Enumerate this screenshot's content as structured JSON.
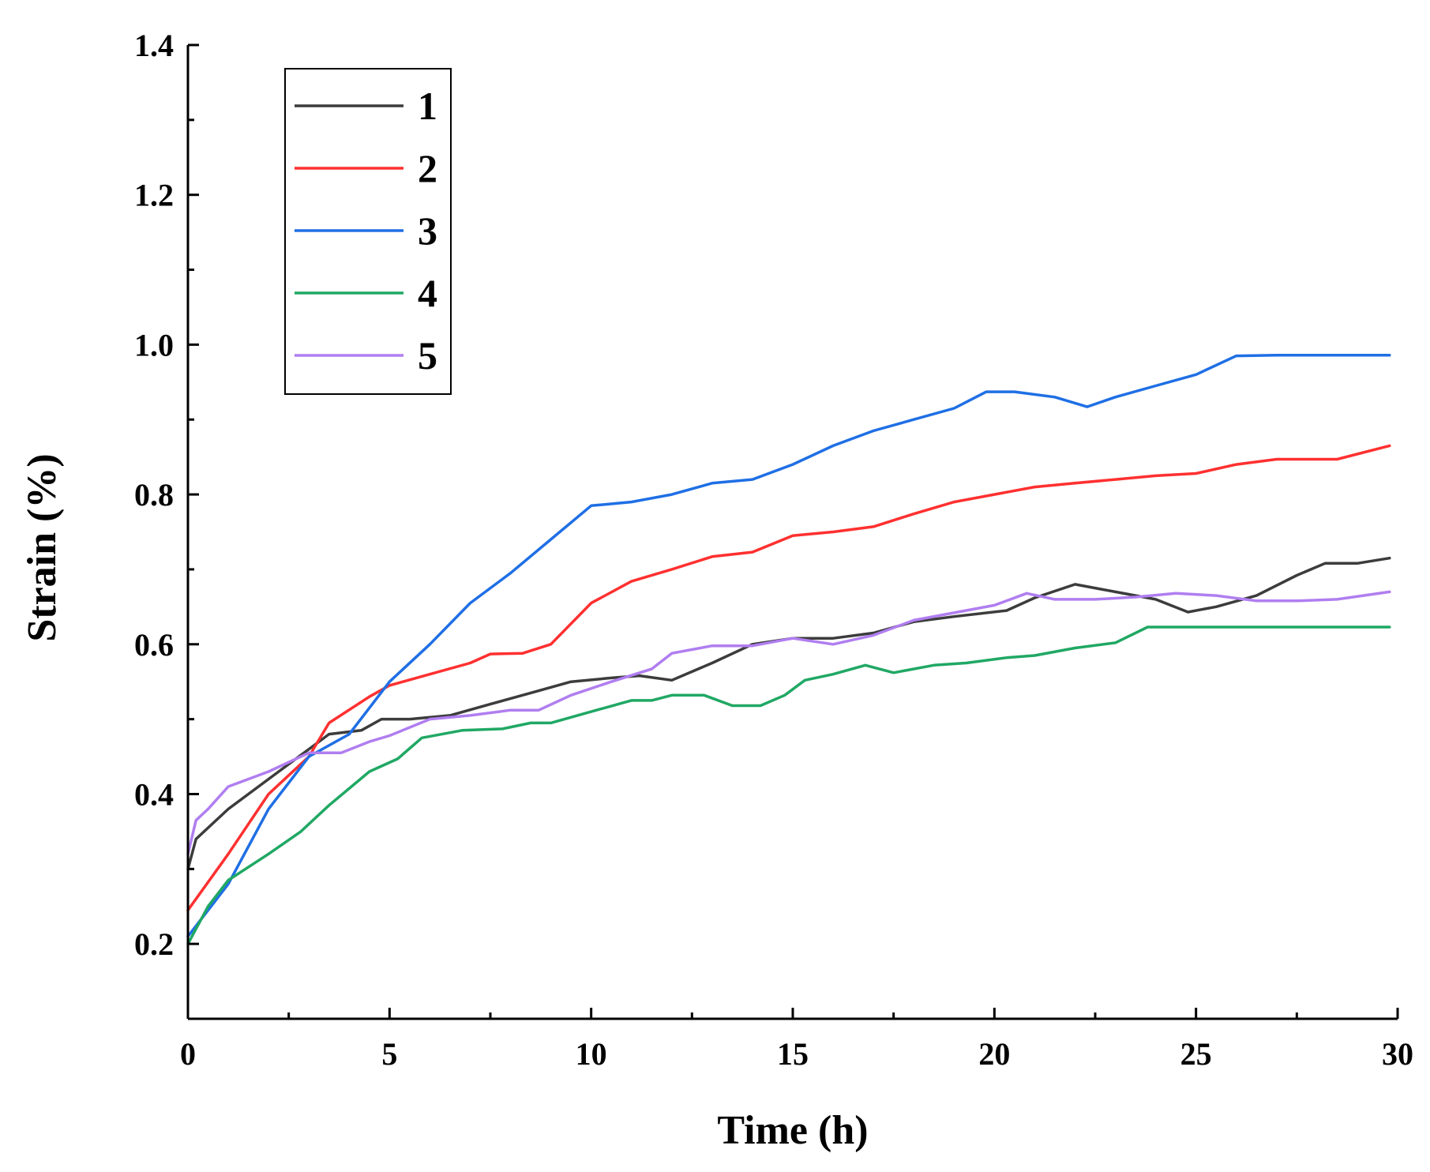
{
  "chart_data": {
    "type": "line",
    "title": "",
    "xlabel": "Time (h)",
    "ylabel": "Strain (%)",
    "xlim": [
      0,
      30
    ],
    "ylim": [
      0.1,
      1.4
    ],
    "xticks": [
      "0",
      "5",
      "10",
      "15",
      "20",
      "25",
      "30"
    ],
    "yticks": [
      "0.2",
      "0.4",
      "0.6",
      "0.8",
      "1.0",
      "1.2",
      "1.4"
    ],
    "legend_position": "top-left",
    "series": [
      {
        "name": "1",
        "color": "#3c3c3c",
        "points": [
          [
            0,
            0.3
          ],
          [
            0.2,
            0.34
          ],
          [
            1,
            0.38
          ],
          [
            2,
            0.42
          ],
          [
            3,
            0.46
          ],
          [
            3.5,
            0.48
          ],
          [
            4.3,
            0.485
          ],
          [
            4.8,
            0.5
          ],
          [
            5.5,
            0.5
          ],
          [
            6.5,
            0.505
          ],
          [
            7.5,
            0.52
          ],
          [
            8.5,
            0.535
          ],
          [
            9.5,
            0.55
          ],
          [
            10.5,
            0.555
          ],
          [
            11.2,
            0.558
          ],
          [
            12,
            0.552
          ],
          [
            13,
            0.575
          ],
          [
            14,
            0.6
          ],
          [
            15,
            0.608
          ],
          [
            16,
            0.608
          ],
          [
            17,
            0.615
          ],
          [
            18,
            0.63
          ],
          [
            19,
            0.637
          ],
          [
            20.3,
            0.645
          ],
          [
            21,
            0.662
          ],
          [
            22,
            0.68
          ],
          [
            23,
            0.67
          ],
          [
            24,
            0.66
          ],
          [
            24.8,
            0.643
          ],
          [
            25.5,
            0.65
          ],
          [
            26.5,
            0.665
          ],
          [
            27.5,
            0.692
          ],
          [
            28.2,
            0.708
          ],
          [
            29,
            0.708
          ],
          [
            29.8,
            0.715
          ]
        ]
      },
      {
        "name": "2",
        "color": "#ff3030",
        "points": [
          [
            0,
            0.245
          ],
          [
            1,
            0.32
          ],
          [
            2,
            0.4
          ],
          [
            3,
            0.45
          ],
          [
            3.5,
            0.495
          ],
          [
            4.5,
            0.53
          ],
          [
            5,
            0.545
          ],
          [
            6,
            0.56
          ],
          [
            7,
            0.575
          ],
          [
            7.5,
            0.587
          ],
          [
            8.3,
            0.588
          ],
          [
            9,
            0.6
          ],
          [
            10,
            0.655
          ],
          [
            11,
            0.684
          ],
          [
            12,
            0.7
          ],
          [
            13,
            0.717
          ],
          [
            14,
            0.723
          ],
          [
            15,
            0.745
          ],
          [
            16,
            0.75
          ],
          [
            17,
            0.757
          ],
          [
            18,
            0.774
          ],
          [
            19,
            0.79
          ],
          [
            20,
            0.8
          ],
          [
            21,
            0.81
          ],
          [
            22,
            0.815
          ],
          [
            23,
            0.82
          ],
          [
            24,
            0.825
          ],
          [
            25,
            0.828
          ],
          [
            26,
            0.84
          ],
          [
            27,
            0.847
          ],
          [
            28.5,
            0.847
          ],
          [
            29.8,
            0.865
          ]
        ]
      },
      {
        "name": "3",
        "color": "#1f6fe5",
        "points": [
          [
            0,
            0.21
          ],
          [
            1,
            0.28
          ],
          [
            2,
            0.38
          ],
          [
            3,
            0.45
          ],
          [
            4,
            0.48
          ],
          [
            5,
            0.55
          ],
          [
            6,
            0.6
          ],
          [
            7,
            0.655
          ],
          [
            8,
            0.695
          ],
          [
            9,
            0.74
          ],
          [
            10,
            0.785
          ],
          [
            11,
            0.79
          ],
          [
            12,
            0.8
          ],
          [
            13,
            0.815
          ],
          [
            14,
            0.82
          ],
          [
            15,
            0.84
          ],
          [
            16,
            0.865
          ],
          [
            17,
            0.885
          ],
          [
            18,
            0.9
          ],
          [
            19,
            0.915
          ],
          [
            19.8,
            0.937
          ],
          [
            20.5,
            0.937
          ],
          [
            21.5,
            0.93
          ],
          [
            22.3,
            0.917
          ],
          [
            23,
            0.93
          ],
          [
            24,
            0.945
          ],
          [
            25,
            0.96
          ],
          [
            26,
            0.985
          ],
          [
            27,
            0.986
          ],
          [
            29.8,
            0.986
          ]
        ]
      },
      {
        "name": "4",
        "color": "#20a864",
        "points": [
          [
            0,
            0.2
          ],
          [
            0.5,
            0.25
          ],
          [
            1,
            0.285
          ],
          [
            2,
            0.32
          ],
          [
            2.8,
            0.35
          ],
          [
            3.5,
            0.385
          ],
          [
            4.5,
            0.43
          ],
          [
            5.2,
            0.447
          ],
          [
            5.8,
            0.475
          ],
          [
            6.8,
            0.485
          ],
          [
            7.8,
            0.487
          ],
          [
            8.5,
            0.495
          ],
          [
            9,
            0.495
          ],
          [
            10,
            0.51
          ],
          [
            11,
            0.525
          ],
          [
            11.5,
            0.525
          ],
          [
            12,
            0.532
          ],
          [
            12.8,
            0.532
          ],
          [
            13.5,
            0.518
          ],
          [
            14.2,
            0.518
          ],
          [
            14.8,
            0.532
          ],
          [
            15.3,
            0.552
          ],
          [
            16,
            0.56
          ],
          [
            16.8,
            0.572
          ],
          [
            17.5,
            0.562
          ],
          [
            18.5,
            0.572
          ],
          [
            19.3,
            0.575
          ],
          [
            20.3,
            0.582
          ],
          [
            21,
            0.585
          ],
          [
            22,
            0.595
          ],
          [
            23,
            0.602
          ],
          [
            23.8,
            0.623
          ],
          [
            29.8,
            0.623
          ]
        ]
      },
      {
        "name": "5",
        "color": "#b07ef0",
        "points": [
          [
            0,
            0.32
          ],
          [
            0.2,
            0.365
          ],
          [
            0.5,
            0.38
          ],
          [
            1,
            0.41
          ],
          [
            2,
            0.43
          ],
          [
            3,
            0.455
          ],
          [
            3.8,
            0.455
          ],
          [
            4.5,
            0.47
          ],
          [
            5,
            0.478
          ],
          [
            6,
            0.5
          ],
          [
            7,
            0.505
          ],
          [
            8,
            0.512
          ],
          [
            8.7,
            0.512
          ],
          [
            9.5,
            0.532
          ],
          [
            10.5,
            0.55
          ],
          [
            11.5,
            0.567
          ],
          [
            12,
            0.588
          ],
          [
            13,
            0.598
          ],
          [
            14,
            0.598
          ],
          [
            15,
            0.608
          ],
          [
            16,
            0.6
          ],
          [
            17,
            0.612
          ],
          [
            18,
            0.632
          ],
          [
            19,
            0.642
          ],
          [
            20,
            0.652
          ],
          [
            20.8,
            0.668
          ],
          [
            21.5,
            0.66
          ],
          [
            22.5,
            0.66
          ],
          [
            23.5,
            0.663
          ],
          [
            24.5,
            0.668
          ],
          [
            25.5,
            0.665
          ],
          [
            26.5,
            0.658
          ],
          [
            27.5,
            0.658
          ],
          [
            28.5,
            0.66
          ],
          [
            29.8,
            0.67
          ]
        ]
      }
    ]
  }
}
